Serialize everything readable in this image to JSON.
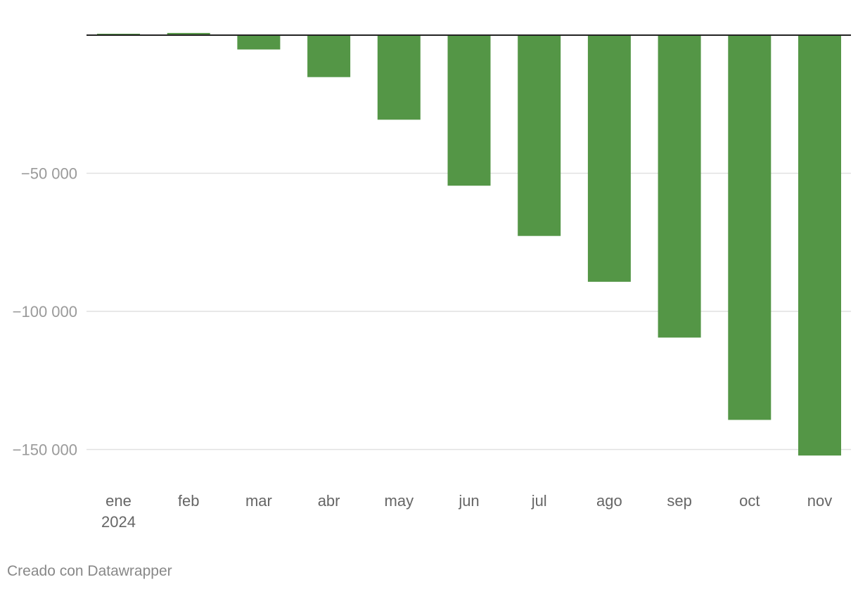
{
  "chart_data": {
    "type": "bar",
    "categories": [
      "ene",
      "feb",
      "mar",
      "abr",
      "may",
      "jun",
      "jul",
      "ago",
      "sep",
      "oct",
      "nov"
    ],
    "category_sublabels": [
      "2024",
      "",
      "",
      "",
      "",
      "",
      "",
      "",
      "",
      "",
      ""
    ],
    "values": [
      500,
      800,
      -5200,
      -15200,
      -30600,
      -54500,
      -72700,
      -89300,
      -109500,
      -139300,
      -152200
    ],
    "ylim": [
      -160000,
      0
    ],
    "yticks": [
      -50000,
      -100000,
      -150000
    ],
    "ytick_labels": [
      "−50 000",
      "−100 000",
      "−150 000"
    ],
    "grid": true,
    "bar_color": "#549646",
    "zero_line_color": "#222222",
    "grid_color": "#e1e1e1",
    "title": "",
    "xlabel": "",
    "ylabel": ""
  },
  "footer": {
    "credit": "Creado con Datawrapper"
  }
}
